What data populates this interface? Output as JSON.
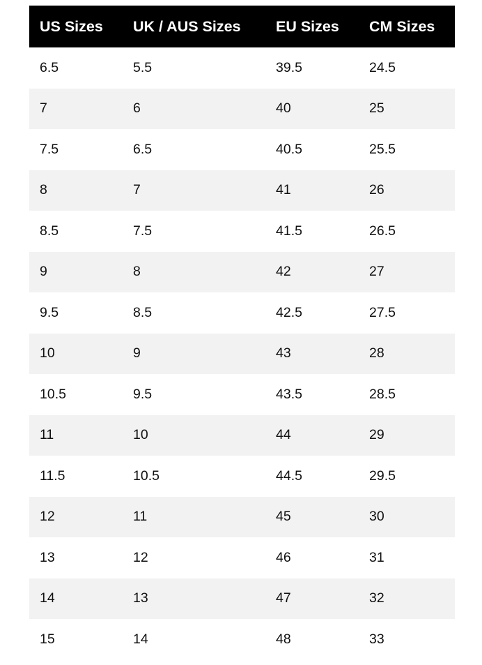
{
  "table": {
    "headers": [
      "US Sizes",
      "UK / AUS Sizes",
      "EU Sizes",
      "CM Sizes"
    ],
    "rows": [
      [
        "6.5",
        "5.5",
        "39.5",
        "24.5"
      ],
      [
        "7",
        "6",
        "40",
        "25"
      ],
      [
        "7.5",
        "6.5",
        "40.5",
        "25.5"
      ],
      [
        "8",
        "7",
        "41",
        "26"
      ],
      [
        "8.5",
        "7.5",
        "41.5",
        "26.5"
      ],
      [
        "9",
        "8",
        "42",
        "27"
      ],
      [
        "9.5",
        "8.5",
        "42.5",
        "27.5"
      ],
      [
        "10",
        "9",
        "43",
        "28"
      ],
      [
        "10.5",
        "9.5",
        "43.5",
        "28.5"
      ],
      [
        "11",
        "10",
        "44",
        "29"
      ],
      [
        "11.5",
        "10.5",
        "44.5",
        "29.5"
      ],
      [
        "12",
        "11",
        "45",
        "30"
      ],
      [
        "13",
        "12",
        "46",
        "31"
      ],
      [
        "14",
        "13",
        "47",
        "32"
      ],
      [
        "15",
        "14",
        "48",
        "33"
      ]
    ],
    "colors": {
      "header_bg": "#000000",
      "header_text": "#ffffff",
      "stripe": "#f2f2f2"
    }
  }
}
